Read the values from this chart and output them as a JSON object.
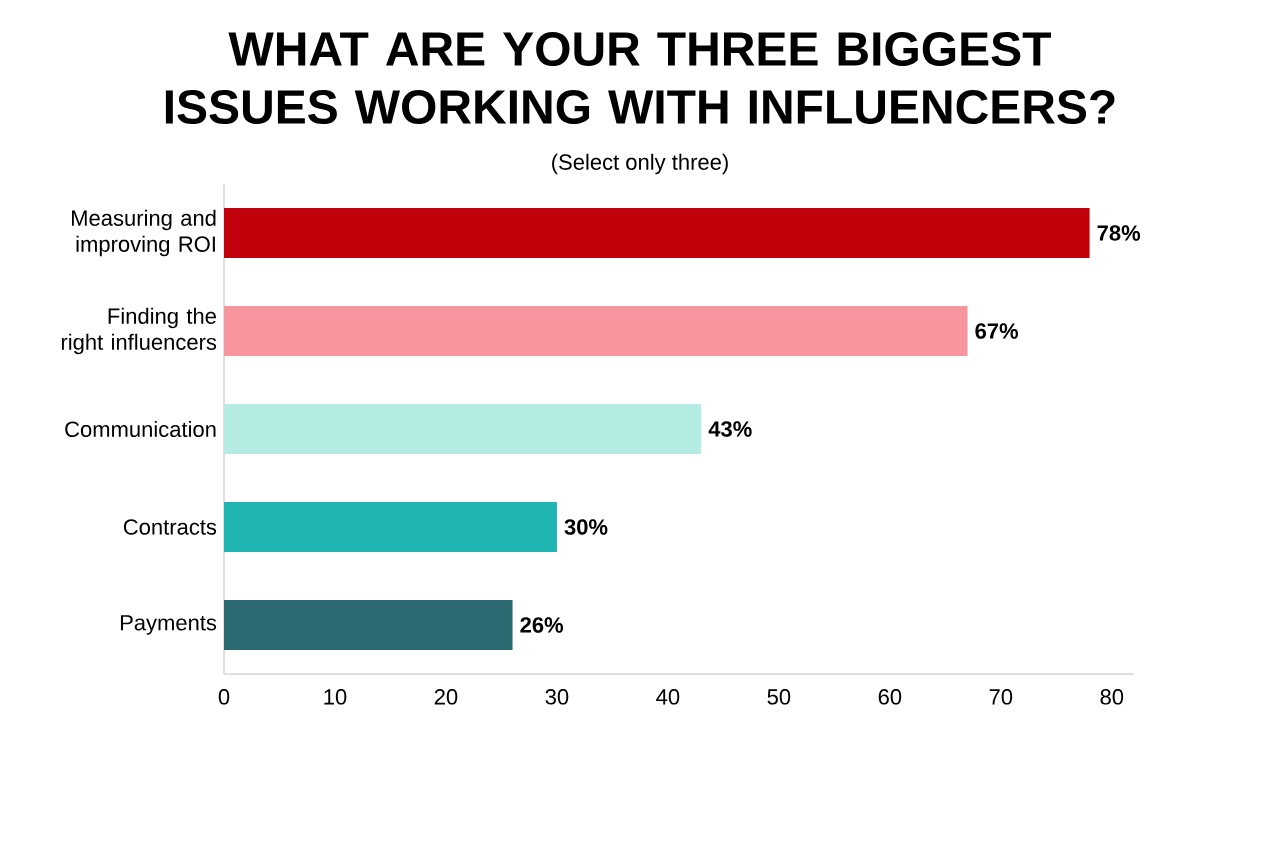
{
  "chart_data": {
    "type": "bar",
    "orientation": "horizontal",
    "title": "WHAT ARE YOUR THREE BIGGEST ISSUES WORKING WITH INFLUENCERS?",
    "subtitle": "(Select only three)",
    "categories": [
      "Measuring and improving ROI",
      "Finding the right influencers",
      "Communication",
      "Contracts",
      "Payments"
    ],
    "values": [
      78,
      67,
      43,
      30,
      26
    ],
    "colors": [
      "#c0000b",
      "#f7959e",
      "#b4ebe3",
      "#20b5b2",
      "#2a6a70"
    ],
    "value_labels": [
      "78%",
      "67%",
      "43%",
      "30%",
      "26%"
    ],
    "xlim": [
      0,
      82
    ],
    "xticks": [
      0,
      10,
      20,
      30,
      40,
      50,
      60,
      70,
      80
    ]
  }
}
